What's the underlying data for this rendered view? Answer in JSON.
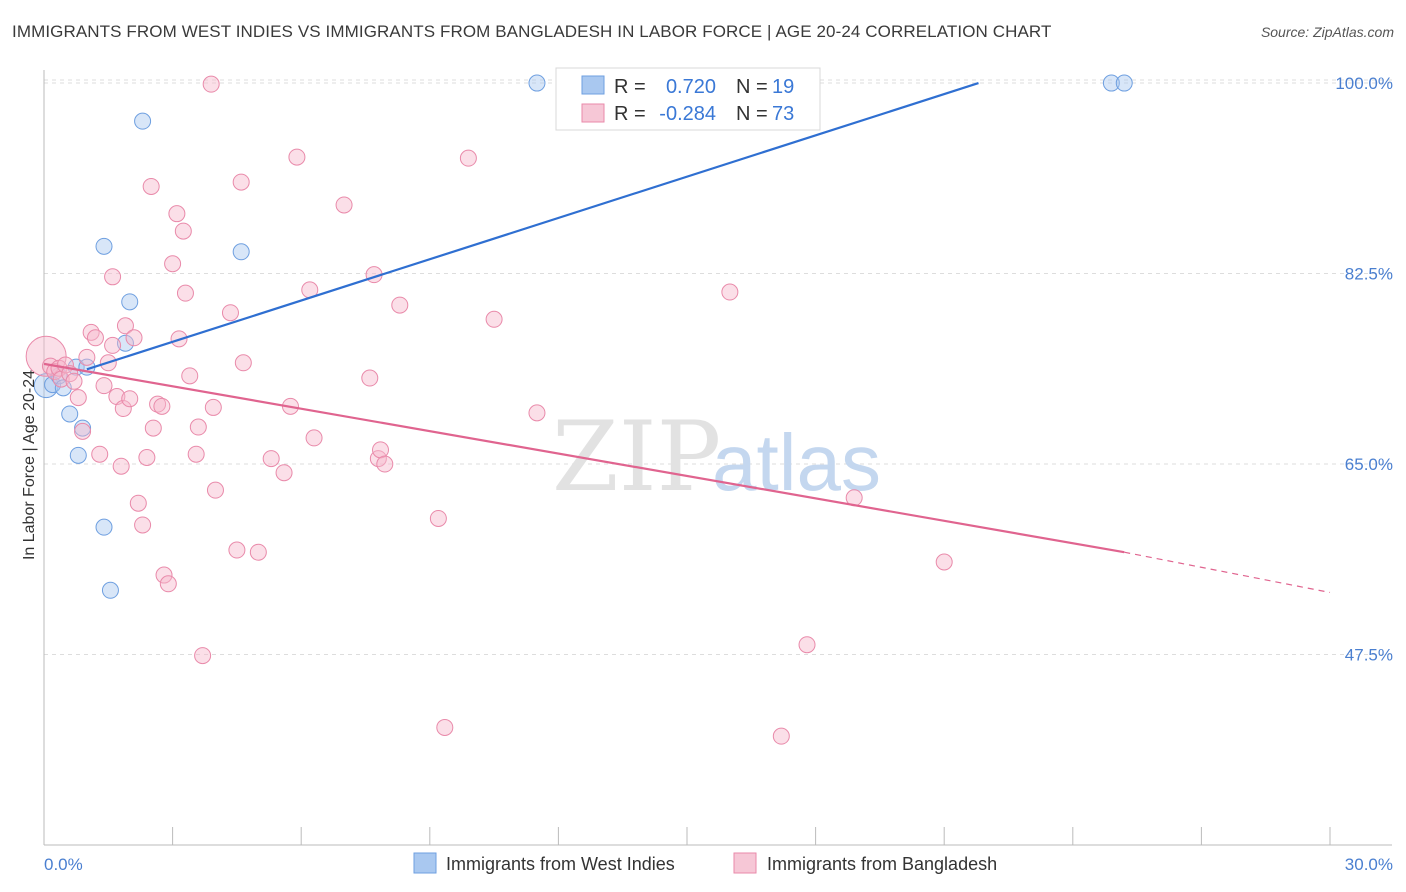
{
  "title": "IMMIGRANTS FROM WEST INDIES VS IMMIGRANTS FROM BANGLADESH IN LABOR FORCE | AGE 20-24 CORRELATION CHART",
  "source": "Source: ZipAtlas.com",
  "watermark": {
    "zip": "ZIP",
    "atlas": "atlas"
  },
  "colors": {
    "blue_fill": "#a9c8f0",
    "blue_stroke": "#6e9fe0",
    "blue_line": "#2f6fd1",
    "pink_fill": "#f6b8cb",
    "pink_stroke": "#e98aaa",
    "pink_line": "#e0648f",
    "axis_text": "#4a7fd0",
    "grid": "#dddddd"
  },
  "chart_data": {
    "type": "scatter",
    "title": "IMMIGRANTS FROM WEST INDIES VS IMMIGRANTS FROM BANGLADESH IN LABOR FORCE | AGE 20-24 CORRELATION CHART",
    "xlabel": "",
    "ylabel": "In Labor Force | Age 20-24",
    "xlim": [
      0,
      30
    ],
    "ylim": [
      30,
      101.2
    ],
    "x_tick_labels": [
      "0.0%",
      "30.0%"
    ],
    "y_ticks": [
      100,
      82.5,
      65,
      47.5
    ],
    "y_tick_labels": [
      "100.0%",
      "82.5%",
      "65.0%",
      "47.5%"
    ],
    "grid": true,
    "legend_position": "top-center",
    "stats": [
      {
        "r_label": "R =",
        "r": "0.720",
        "n_label": "N =",
        "n": "19"
      },
      {
        "r_label": "R =",
        "r": "-0.284",
        "n_label": "N =",
        "n": "73"
      }
    ],
    "series": [
      {
        "name": "Immigrants from West Indies",
        "color": "blue",
        "points": [
          [
            0.05,
            72.2
          ],
          [
            0.2,
            72.3
          ],
          [
            0.35,
            73.1
          ],
          [
            0.45,
            72.0
          ],
          [
            0.6,
            69.6
          ],
          [
            0.75,
            73.9
          ],
          [
            0.8,
            65.8
          ],
          [
            0.9,
            68.3
          ],
          [
            1.0,
            73.9
          ],
          [
            1.4,
            59.2
          ],
          [
            1.4,
            85.0
          ],
          [
            1.55,
            53.4
          ],
          [
            1.9,
            76.1
          ],
          [
            2.0,
            79.9
          ],
          [
            2.3,
            96.5
          ],
          [
            4.6,
            84.5
          ],
          [
            11.5,
            100.0
          ],
          [
            24.9,
            100.0
          ],
          [
            25.2,
            100.0
          ]
        ],
        "trend": {
          "x0": 1.0,
          "y0": 73.7,
          "x1": 21.8,
          "y1": 100.0,
          "dashed_to": null
        }
      },
      {
        "name": "Immigrants from Bangladesh",
        "color": "pink",
        "points": [
          [
            0.05,
            74.9
          ],
          [
            0.15,
            74.0
          ],
          [
            0.25,
            73.5
          ],
          [
            0.35,
            73.8
          ],
          [
            0.4,
            72.8
          ],
          [
            0.5,
            74.1
          ],
          [
            0.6,
            73.3
          ],
          [
            0.7,
            72.6
          ],
          [
            0.8,
            71.1
          ],
          [
            0.9,
            68.0
          ],
          [
            1.0,
            74.8
          ],
          [
            1.1,
            77.1
          ],
          [
            1.2,
            76.6
          ],
          [
            1.3,
            65.9
          ],
          [
            1.4,
            72.2
          ],
          [
            1.5,
            74.3
          ],
          [
            1.6,
            75.9
          ],
          [
            1.6,
            82.2
          ],
          [
            1.7,
            71.2
          ],
          [
            1.8,
            64.8
          ],
          [
            1.85,
            70.1
          ],
          [
            1.9,
            77.7
          ],
          [
            2.0,
            71.0
          ],
          [
            2.1,
            76.6
          ],
          [
            2.2,
            61.4
          ],
          [
            2.3,
            59.4
          ],
          [
            2.4,
            65.6
          ],
          [
            2.5,
            90.5
          ],
          [
            2.55,
            68.3
          ],
          [
            2.65,
            70.5
          ],
          [
            2.75,
            70.3
          ],
          [
            2.8,
            54.8
          ],
          [
            2.9,
            54.0
          ],
          [
            3.0,
            83.4
          ],
          [
            3.1,
            88.0
          ],
          [
            3.15,
            76.5
          ],
          [
            3.25,
            86.4
          ],
          [
            3.3,
            80.7
          ],
          [
            3.4,
            73.1
          ],
          [
            3.55,
            65.9
          ],
          [
            3.6,
            68.4
          ],
          [
            3.7,
            47.4
          ],
          [
            3.9,
            99.9
          ],
          [
            3.95,
            70.2
          ],
          [
            4.0,
            62.6
          ],
          [
            4.35,
            78.9
          ],
          [
            4.5,
            57.1
          ],
          [
            4.6,
            90.9
          ],
          [
            4.65,
            74.3
          ],
          [
            5.0,
            56.9
          ],
          [
            5.3,
            65.5
          ],
          [
            5.6,
            64.2
          ],
          [
            5.75,
            70.3
          ],
          [
            5.9,
            93.2
          ],
          [
            6.2,
            81.0
          ],
          [
            6.3,
            67.4
          ],
          [
            7.0,
            88.8
          ],
          [
            7.6,
            72.9
          ],
          [
            7.7,
            82.4
          ],
          [
            7.8,
            65.5
          ],
          [
            7.85,
            66.3
          ],
          [
            7.95,
            65.0
          ],
          [
            8.3,
            79.6
          ],
          [
            9.2,
            60.0
          ],
          [
            9.35,
            40.8
          ],
          [
            9.9,
            93.1
          ],
          [
            10.5,
            78.3
          ],
          [
            11.5,
            69.7
          ],
          [
            16.0,
            80.8
          ],
          [
            17.2,
            40.0
          ],
          [
            17.8,
            48.4
          ],
          [
            18.9,
            61.9
          ],
          [
            21.0,
            56.0
          ]
        ],
        "trend": {
          "x0": 0.0,
          "y0": 74.2,
          "x1": 25.2,
          "y1": 56.9,
          "dashed_to": [
            30.0,
            53.2
          ]
        }
      }
    ]
  }
}
